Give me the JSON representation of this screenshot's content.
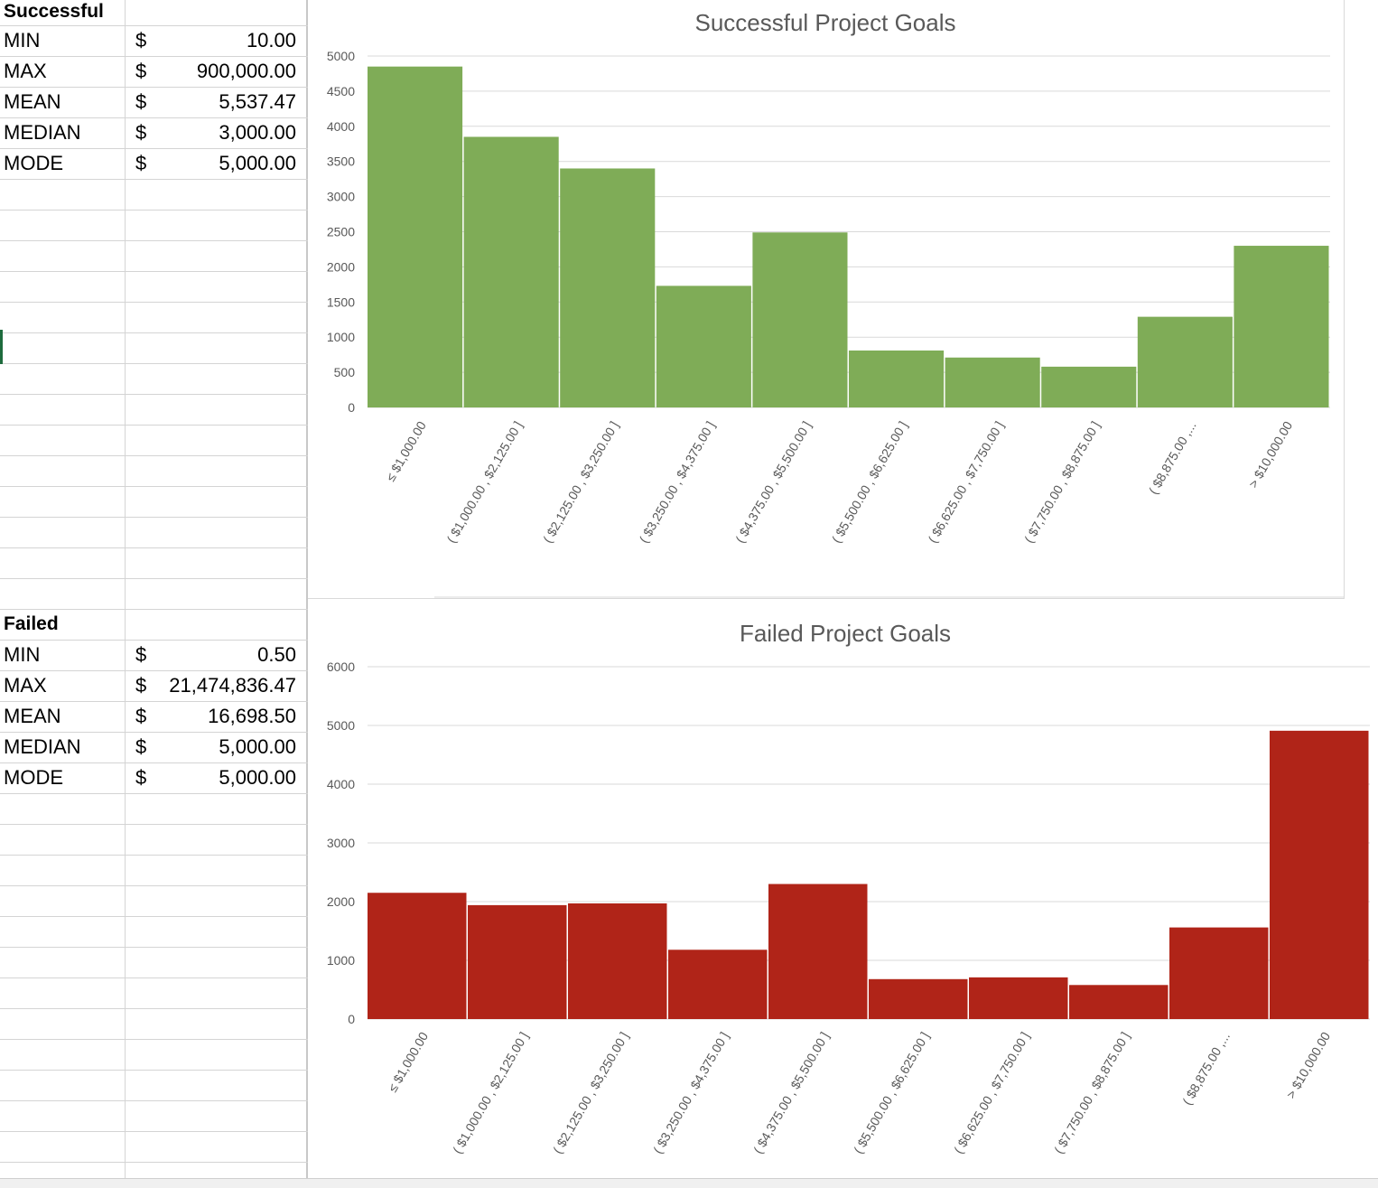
{
  "successful": {
    "heading": "Successful",
    "stats": [
      {
        "label": "MIN",
        "currency": "$",
        "value": "10.00"
      },
      {
        "label": "MAX",
        "currency": "$",
        "value": "900,000.00"
      },
      {
        "label": "MEAN",
        "currency": "$",
        "value": "5,537.47"
      },
      {
        "label": "MEDIAN",
        "currency": "$",
        "value": "3,000.00"
      },
      {
        "label": "MODE",
        "currency": "$",
        "value": "5,000.00"
      }
    ]
  },
  "failed": {
    "heading": "Failed",
    "stats": [
      {
        "label": "MIN",
        "currency": "$",
        "value": "0.50"
      },
      {
        "label": "MAX",
        "currency": "$",
        "value": "21,474,836.47"
      },
      {
        "label": "MEAN",
        "currency": "$",
        "value": "16,698.50"
      },
      {
        "label": "MEDIAN",
        "currency": "$",
        "value": "5,000.00"
      },
      {
        "label": "MODE",
        "currency": "$",
        "value": "5,000.00"
      }
    ]
  },
  "chart_data": [
    {
      "type": "bar",
      "title": "Successful Project Goals",
      "categories": [
        "≤ $1,000.00",
        "( $1,000.00 , $2,125.00 ]",
        "( $2,125.00 , $3,250.00 ]",
        "( $3,250.00 , $4,375.00 ]",
        "( $4,375.00 , $5,500.00 ]",
        "( $5,500.00 , $6,625.00 ]",
        "( $6,625.00 , $7,750.00 ]",
        "( $7,750.00 , $8,875.00 ]",
        "( $8,875.00 ,...",
        "> $10,000.00"
      ],
      "values": [
        4850,
        3850,
        3400,
        1730,
        2490,
        810,
        710,
        580,
        1290,
        2300
      ],
      "ylim": [
        0,
        5000
      ],
      "yticks": [
        0,
        500,
        1000,
        1500,
        2000,
        2500,
        3000,
        3500,
        4000,
        4500,
        5000
      ],
      "grid": true,
      "color": "#7fac57"
    },
    {
      "type": "bar",
      "title": "Failed Project Goals",
      "categories": [
        "≤ $1,000.00",
        "( $1,000.00 , $2,125.00 ]",
        "( $2,125.00 , $3,250.00 ]",
        "( $3,250.00 , $4,375.00 ]",
        "( $4,375.00 , $5,500.00 ]",
        "( $5,500.00 , $6,625.00 ]",
        "( $6,625.00 , $7,750.00 ]",
        "( $7,750.00 , $8,875.00 ]",
        "( $8,875.00 ,...",
        "> $10,000.00"
      ],
      "values": [
        2150,
        1940,
        1970,
        1180,
        2300,
        680,
        710,
        580,
        1560,
        4910
      ],
      "ylim": [
        0,
        6000
      ],
      "yticks": [
        0,
        1000,
        2000,
        3000,
        4000,
        5000,
        6000
      ],
      "grid": true,
      "color": "#b02418"
    }
  ]
}
